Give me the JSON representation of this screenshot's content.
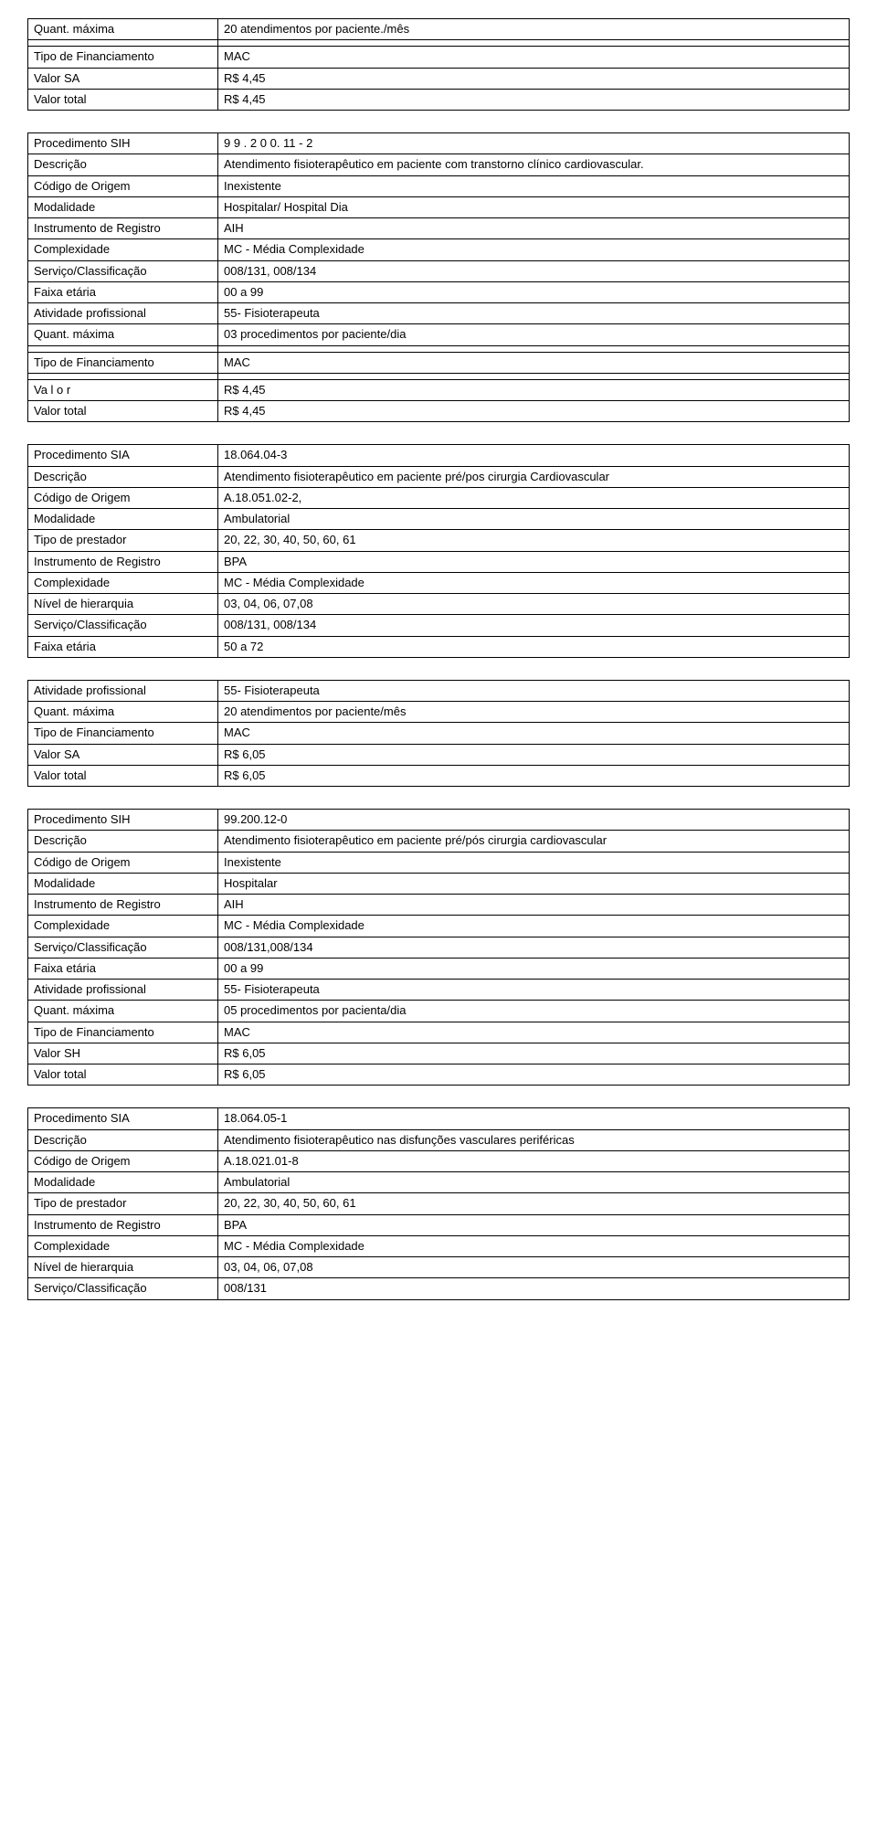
{
  "t1": {
    "rows": [
      [
        "Quant. máxima",
        "20 atendimentos por paciente./mês"
      ],
      [
        "",
        ""
      ],
      [
        "Tipo de Financiamento",
        "MAC"
      ],
      [
        "Valor SA",
        "R$ 4,45"
      ],
      [
        "Valor total",
        "R$ 4,45"
      ]
    ]
  },
  "t2": {
    "rows": [
      [
        "Procedimento SIH",
        "9 9 . 2 0 0. 11 - 2"
      ],
      [
        "Descrição",
        "Atendimento fisioterapêutico em paciente com transtorno clínico cardiovascular."
      ],
      [
        "Código de Origem",
        "Inexistente"
      ],
      [
        "Modalidade",
        "Hospitalar/ Hospital Dia"
      ],
      [
        "Instrumento de Registro",
        "AIH"
      ],
      [
        "Complexidade",
        "MC - Média Complexidade"
      ],
      [
        "Serviço/Classificação",
        "008/131, 008/134"
      ],
      [
        "Faixa etária",
        "00 a 99"
      ],
      [
        "Atividade profissional",
        "55- Fisioterapeuta"
      ],
      [
        "Quant. máxima",
        "03 procedimentos por paciente/dia"
      ],
      [
        "",
        ""
      ],
      [
        "Tipo de Financiamento",
        "MAC"
      ],
      [
        "",
        ""
      ],
      [
        "Va l o r",
        "R$ 4,45"
      ],
      [
        "Valor total",
        "R$ 4,45"
      ]
    ]
  },
  "t3": {
    "rows": [
      [
        "Procedimento SIA",
        "18.064.04-3"
      ],
      [
        "Descrição",
        "Atendimento fisioterapêutico em paciente pré/pos cirurgia Cardiovascular"
      ],
      [
        "Código de Origem",
        "A.18.051.02-2,"
      ],
      [
        "Modalidade",
        "Ambulatorial"
      ],
      [
        "Tipo de prestador",
        "20, 22, 30, 40, 50, 60, 61"
      ],
      [
        "Instrumento de Registro",
        "BPA"
      ],
      [
        "Complexidade",
        "MC - Média Complexidade"
      ],
      [
        "Nível de hierarquia",
        "03, 04, 06, 07,08"
      ],
      [
        "Serviço/Classificação",
        "008/131, 008/134"
      ],
      [
        "Faixa etária",
        "50 a 72"
      ]
    ]
  },
  "t4": {
    "rows": [
      [
        "Atividade profissional",
        "55- Fisioterapeuta"
      ],
      [
        "Quant. máxima",
        "20 atendimentos por paciente/mês"
      ],
      [
        "Tipo de Financiamento",
        "MAC"
      ],
      [
        "Valor SA",
        "R$ 6,05"
      ],
      [
        "Valor total",
        "R$ 6,05"
      ]
    ]
  },
  "t5": {
    "rows": [
      [
        "Procedimento SIH",
        "99.200.12-0"
      ],
      [
        "Descrição",
        "Atendimento fisioterapêutico em paciente pré/pós cirurgia cardiovascular"
      ],
      [
        "Código de Origem",
        "Inexistente"
      ],
      [
        "Modalidade",
        "Hospitalar"
      ],
      [
        "Instrumento de Registro",
        "AIH"
      ],
      [
        "Complexidade",
        "MC - Média Complexidade"
      ],
      [
        "Serviço/Classificação",
        "008/131,008/134"
      ],
      [
        "Faixa etária",
        "00 a 99"
      ],
      [
        "Atividade profissional",
        "55- Fisioterapeuta"
      ],
      [
        "Quant. máxima",
        "05 procedimentos por pacienta/dia"
      ],
      [
        "Tipo de Financiamento",
        "MAC"
      ],
      [
        "Valor SH",
        "R$ 6,05"
      ],
      [
        "Valor total",
        "R$ 6,05"
      ]
    ]
  },
  "t6": {
    "rows": [
      [
        "Procedimento SIA",
        "18.064.05-1"
      ],
      [
        "Descrição",
        "Atendimento fisioterapêutico nas disfunções vasculares periféricas"
      ],
      [
        "Código de Origem",
        "A.18.021.01-8"
      ],
      [
        "Modalidade",
        "Ambulatorial"
      ],
      [
        "Tipo de prestador",
        "20, 22, 30, 40, 50, 60, 61"
      ],
      [
        "Instrumento de Registro",
        "BPA"
      ],
      [
        "Complexidade",
        "MC - Média Complexidade"
      ],
      [
        "Nível de hierarquia",
        "03, 04, 06, 07,08"
      ],
      [
        "Serviço/Classificação",
        "008/131"
      ]
    ]
  }
}
